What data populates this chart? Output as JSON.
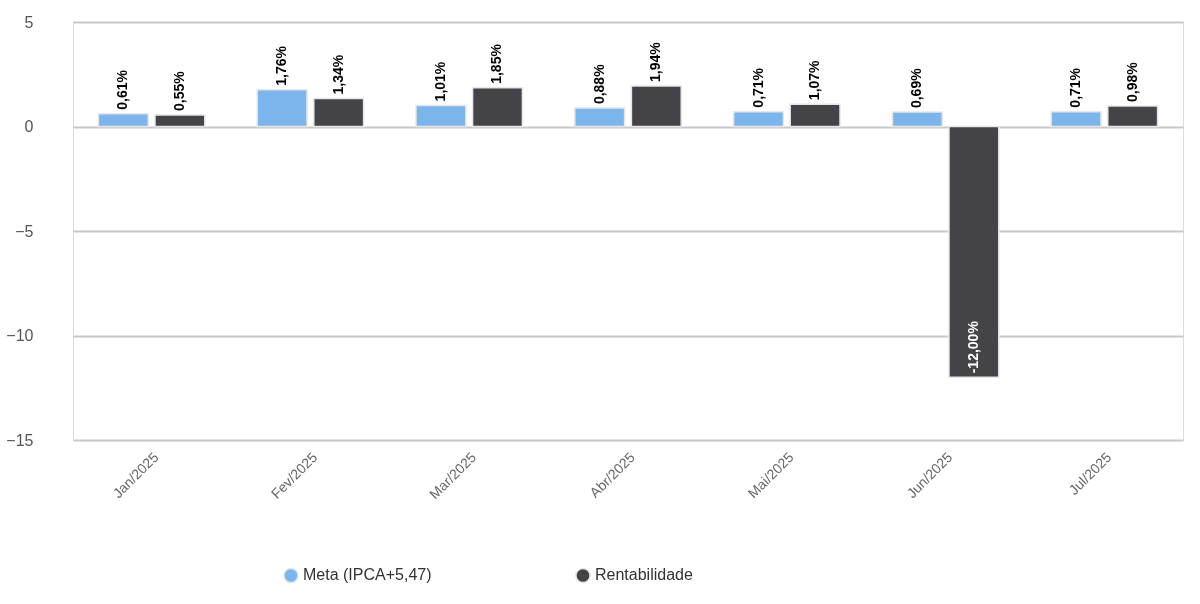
{
  "chart_data": {
    "type": "bar",
    "categories": [
      "Jan/2025",
      "Fev/2025",
      "Mar/2025",
      "Abr/2025",
      "Mai/2025",
      "Jun/2025",
      "Jul/2025"
    ],
    "series": [
      {
        "name": "Meta (IPCA+5,47)",
        "color": "#7cb5ec",
        "values": [
          0.61,
          1.76,
          1.01,
          0.88,
          0.71,
          0.69,
          0.71
        ],
        "value_labels": [
          "0,61%",
          "1,76%",
          "1,01%",
          "0,88%",
          "0,71%",
          "0,69%",
          "0,71%"
        ]
      },
      {
        "name": "Rentabilidade",
        "color": "#434348",
        "values": [
          0.55,
          1.34,
          1.85,
          1.94,
          1.07,
          -12.0,
          0.98
        ],
        "value_labels": [
          "0,55%",
          "1,34%",
          "1,85%",
          "1,94%",
          "1,07%",
          "-12,00%",
          "0,98%"
        ]
      }
    ],
    "ylim": [
      -15,
      5
    ],
    "yticks": [
      -15,
      -10,
      -5,
      0,
      5
    ],
    "grid": "y",
    "legend": "bottom"
  }
}
